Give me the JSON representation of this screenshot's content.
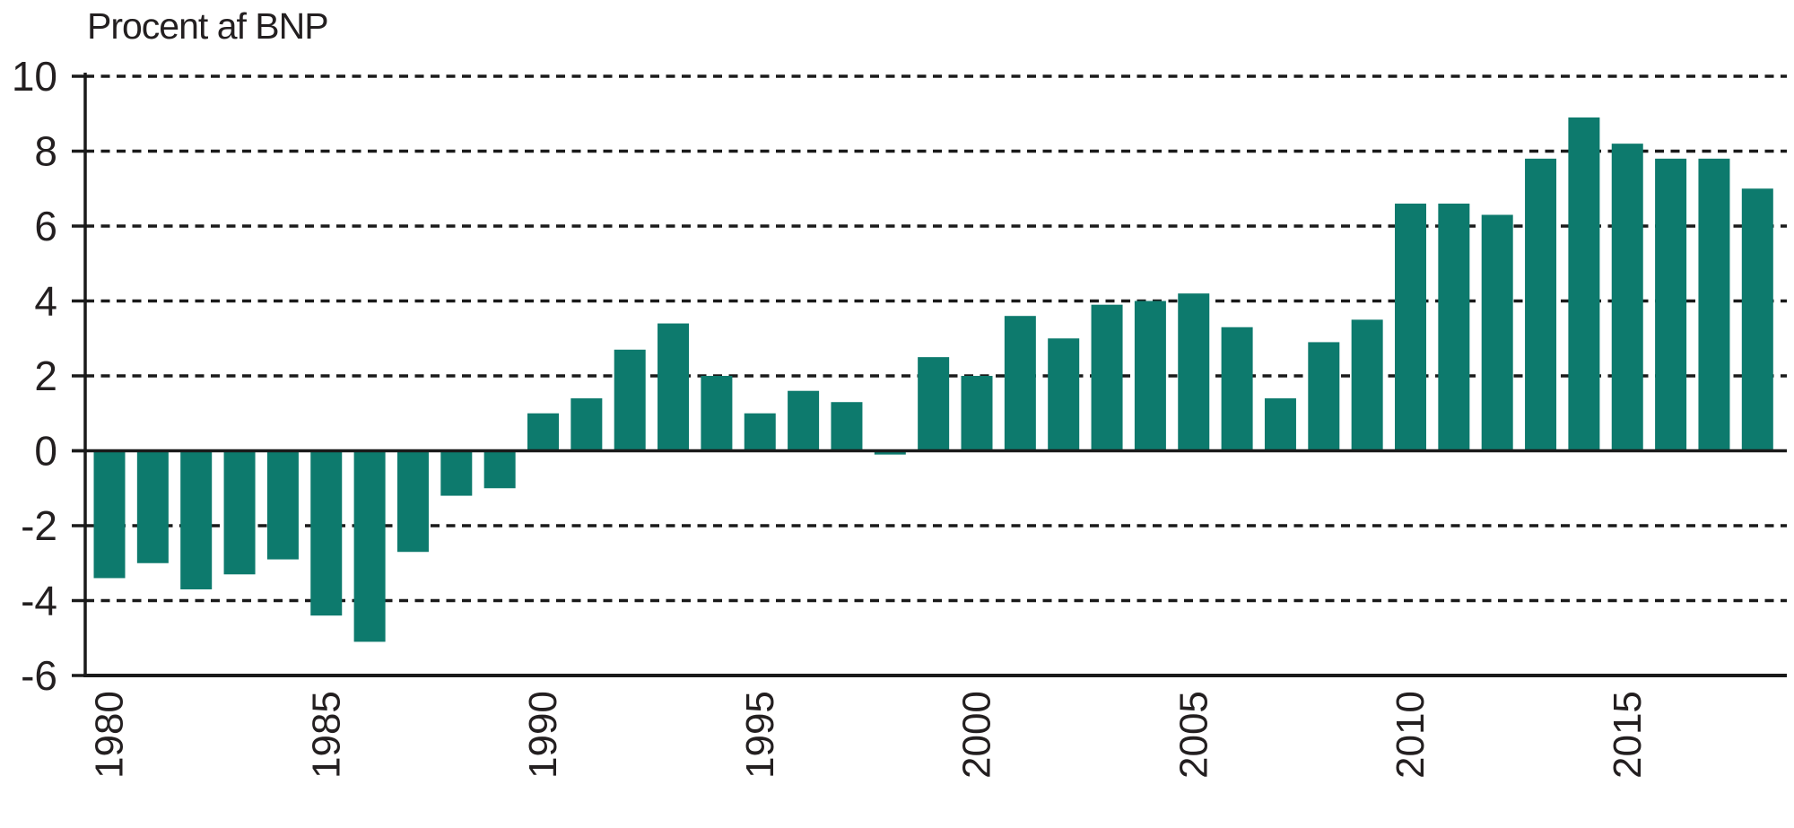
{
  "chart_data": {
    "type": "bar",
    "title": "Procent af BNP",
    "categories": [
      1980,
      1981,
      1982,
      1983,
      1984,
      1985,
      1986,
      1987,
      1988,
      1989,
      1990,
      1991,
      1992,
      1993,
      1994,
      1995,
      1996,
      1997,
      1998,
      1999,
      2000,
      2001,
      2002,
      2003,
      2004,
      2005,
      2006,
      2007,
      2008,
      2009,
      2010,
      2011,
      2012,
      2013,
      2014,
      2015,
      2016,
      2017,
      2018
    ],
    "values": [
      -3.4,
      -3.0,
      -3.7,
      -3.3,
      -2.9,
      -4.4,
      -5.1,
      -2.7,
      -1.2,
      -1.0,
      1.0,
      1.4,
      2.7,
      3.4,
      2.0,
      1.0,
      1.6,
      1.3,
      -0.1,
      2.5,
      2.0,
      3.6,
      3.0,
      3.9,
      4.0,
      4.2,
      3.3,
      1.4,
      2.9,
      3.5,
      6.6,
      6.6,
      6.3,
      7.8,
      8.9,
      8.2,
      7.8,
      7.8,
      7.0
    ],
    "xlabel": "",
    "ylabel": "Procent af BNP",
    "ylim": [
      -6,
      10
    ],
    "ytick_values": [
      10,
      8,
      6,
      4,
      2,
      0,
      -2,
      -4,
      -6
    ],
    "ytick_labels": [
      "10",
      "8",
      "6",
      "4",
      "2",
      "0",
      "-2",
      "-4",
      "-6"
    ],
    "xtick_values": [
      1980,
      1985,
      1990,
      1995,
      2000,
      2005,
      2010,
      2015
    ],
    "xtick_labels": [
      "1980",
      "1985",
      "1990",
      "1995",
      "2000",
      "2005",
      "2010",
      "2015"
    ],
    "grid": "horizontal dashed lines at every 2 units; solid line at 0; solid bottom axis at -6",
    "legend_position": "none",
    "bar_color": "#0d7a6d",
    "axis_color": "#1a1a1a",
    "text_color": "#231f20"
  }
}
